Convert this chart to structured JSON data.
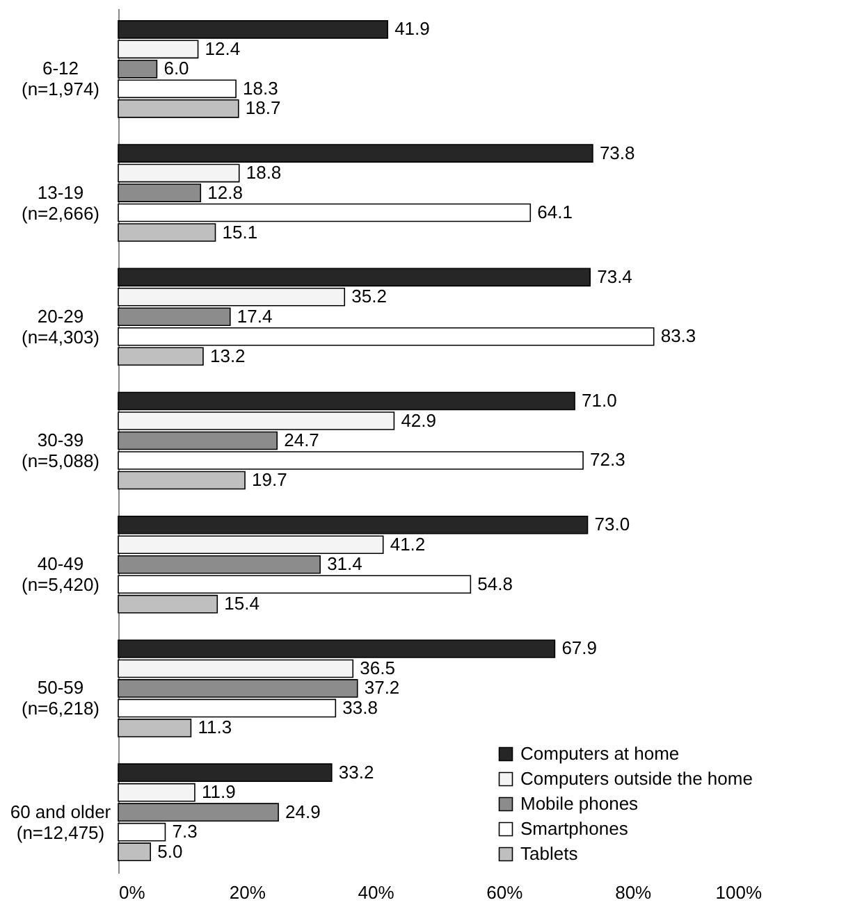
{
  "chart_data": {
    "type": "bar",
    "orientation": "horizontal",
    "categories": [
      "6-12\n(n=1,974)",
      "13-19\n(n=2,666)",
      "20-29\n(n=4,303)",
      "30-39\n(n=5,088)",
      "40-49\n(n=5,420)",
      "50-59\n(n=6,218)",
      "60 and older\n(n=12,475)"
    ],
    "series": [
      {
        "name": "Computers at home",
        "color": "#262626",
        "values": [
          41.9,
          73.8,
          73.4,
          71,
          73,
          67.9,
          33.2
        ],
        "value_labels": [
          "41.9",
          "73.8",
          "73.4",
          "71.0",
          "73.0",
          "67.9",
          "33.2"
        ]
      },
      {
        "name": "Computers outside the home",
        "color": "#f4f4f4",
        "values": [
          12.4,
          18.8,
          35.2,
          42.9,
          41.2,
          36.5,
          11.9
        ],
        "value_labels": [
          "12.4",
          "18.8",
          "35.2",
          "42.9",
          "41.2",
          "36.5",
          "11.9"
        ]
      },
      {
        "name": "Mobile phones",
        "color": "#8c8c8c",
        "values": [
          6,
          12.8,
          17.4,
          24.7,
          31.4,
          37.2,
          24.9
        ],
        "value_labels": [
          "6.0",
          "12.8",
          "17.4",
          "24.7",
          "31.4",
          "37.2",
          "24.9"
        ]
      },
      {
        "name": "Smartphones",
        "color": "#ffffff",
        "values": [
          18.3,
          64.1,
          83.3,
          72.3,
          54.8,
          33.8,
          7.3
        ],
        "value_labels": [
          "18.3",
          "64.1",
          "83.3",
          "72.3",
          "54.8",
          "33.8",
          "7.3"
        ]
      },
      {
        "name": "Tablets",
        "color": "#bfbfbf",
        "values": [
          18.7,
          15.1,
          13.2,
          19.7,
          15.4,
          11.3,
          5
        ],
        "value_labels": [
          "18.7",
          "15.1",
          "13.2",
          "19.7",
          "15.4",
          "11.3",
          "5.0"
        ]
      }
    ],
    "xlim": [
      0,
      100
    ],
    "xticks": [
      {
        "value": 0,
        "label": "0%"
      },
      {
        "value": 20,
        "label": "20%"
      },
      {
        "value": 40,
        "label": "40%"
      },
      {
        "value": 60,
        "label": "60%"
      },
      {
        "value": 80,
        "label": "80%"
      },
      {
        "value": 100,
        "label": "100%"
      }
    ],
    "legend": "bottom right",
    "grid": false
  }
}
